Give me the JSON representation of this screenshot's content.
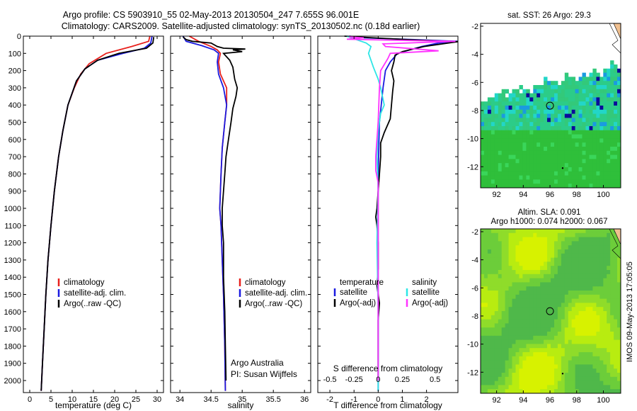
{
  "title_line1": "Argo profile: CS 5903910_55 02-May-2013 20130504_247 7.655S 96.001E",
  "title_line2": "Climatology: CARS2009. Satellite-adjusted climatology: synTS_20130502.nc (0.18d earlier)",
  "side_stamp": "IMOS 09-May-2013 17:05:05",
  "footer_institution": "Argo Australia",
  "footer_pi": "PI: Susan Wijffels",
  "colors": {
    "climatology": "#e8201c",
    "satellite": "#1a1ae0",
    "argo": "#000000",
    "sal_satellite": "#2ee6e6",
    "sal_argo": "#ff33ff"
  },
  "chart_data": [
    {
      "type": "line",
      "id": "temperature",
      "xlabel": "temperature (deg C)",
      "xlim": [
        -1.5,
        31.5
      ],
      "ylim": [
        2070,
        0
      ],
      "xticks": [
        0,
        5,
        10,
        15,
        20,
        25,
        30
      ],
      "xtick_labels": [
        "0",
        "5",
        "10",
        "15",
        "20",
        "25",
        "30"
      ],
      "yticks": [
        0,
        100,
        200,
        300,
        400,
        500,
        600,
        700,
        800,
        900,
        1000,
        1100,
        1200,
        1300,
        1400,
        1500,
        1600,
        1700,
        1800,
        1900,
        2000
      ],
      "ytick_labels": [
        "0",
        "100",
        "200",
        "300",
        "400",
        "500",
        "600",
        "700",
        "800",
        "900",
        "1000",
        "1100",
        "1200",
        "1300",
        "1400",
        "1500",
        "1600",
        "1700",
        "1800",
        "1900",
        "2000"
      ],
      "legend": [
        "climatology",
        "satellite-adj. clim.",
        "Argo(..raw -QC)"
      ],
      "series": [
        {
          "name": "climatology",
          "color_key": "climatology",
          "points": [
            [
              28.3,
              0
            ],
            [
              28,
              30
            ],
            [
              24,
              60
            ],
            [
              18,
              100
            ],
            [
              14,
              160
            ],
            [
              12,
              220
            ],
            [
              10.5,
              300
            ],
            [
              9,
              400
            ],
            [
              7.8,
              550
            ],
            [
              6.8,
              700
            ],
            [
              5.8,
              900
            ],
            [
              5,
              1100
            ],
            [
              4.3,
              1300
            ],
            [
              3.8,
              1500
            ],
            [
              3.4,
              1700
            ],
            [
              3,
              1900
            ],
            [
              2.7,
              2060
            ]
          ]
        },
        {
          "name": "satellite-adj. clim.",
          "color_key": "satellite",
          "points": [
            [
              28.8,
              0
            ],
            [
              28.5,
              40
            ],
            [
              27,
              70
            ],
            [
              22,
              100
            ],
            [
              16,
              140
            ],
            [
              13,
              190
            ],
            [
              11,
              260
            ],
            [
              10,
              330
            ],
            [
              9,
              400
            ],
            [
              7.8,
              550
            ],
            [
              6.8,
              700
            ],
            [
              5.8,
              900
            ],
            [
              5,
              1100
            ],
            [
              4.3,
              1300
            ],
            [
              3.8,
              1500
            ],
            [
              3.4,
              1700
            ],
            [
              3,
              1900
            ],
            [
              2.7,
              2060
            ]
          ]
        },
        {
          "name": "Argo(..raw -QC)",
          "color_key": "argo",
          "points": [
            [
              29.2,
              5
            ],
            [
              29,
              40
            ],
            [
              27.5,
              70
            ],
            [
              21,
              100
            ],
            [
              16,
              140
            ],
            [
              13,
              190
            ],
            [
              11,
              260
            ],
            [
              10,
              330
            ],
            [
              9,
              400
            ],
            [
              7.8,
              550
            ],
            [
              6.8,
              700
            ],
            [
              5.8,
              900
            ],
            [
              5,
              1100
            ],
            [
              4.3,
              1300
            ],
            [
              3.8,
              1500
            ],
            [
              3.4,
              1700
            ],
            [
              3,
              1900
            ],
            [
              2.7,
              2060
            ]
          ]
        }
      ]
    },
    {
      "type": "line",
      "id": "salinity",
      "xlabel": "salinity",
      "xlim": [
        33.85,
        36.1
      ],
      "ylim": [
        2070,
        0
      ],
      "xticks": [
        34,
        34.5,
        35,
        35.5,
        36
      ],
      "xtick_labels": [
        "34",
        "34.5",
        "35",
        "35.5",
        "36"
      ],
      "legend": [
        "climatology",
        "satellite-adj. clim.",
        "Argo(..raw -QC)"
      ],
      "series": [
        {
          "name": "climatology",
          "color_key": "climatology",
          "points": [
            [
              34.15,
              0
            ],
            [
              34.3,
              30
            ],
            [
              34.5,
              60
            ],
            [
              34.6,
              80
            ],
            [
              34.65,
              100
            ],
            [
              34.62,
              150
            ],
            [
              34.65,
              220
            ],
            [
              34.75,
              300
            ],
            [
              34.75,
              400
            ],
            [
              34.72,
              500
            ],
            [
              34.68,
              650
            ],
            [
              34.66,
              800
            ],
            [
              34.64,
              1000
            ],
            [
              34.66,
              1100
            ],
            [
              34.68,
              1300
            ],
            [
              34.7,
              1500
            ],
            [
              34.72,
              1800
            ],
            [
              34.73,
              2060
            ]
          ]
        },
        {
          "name": "satellite-adj. clim.",
          "color_key": "satellite",
          "points": [
            [
              34.05,
              0
            ],
            [
              34.1,
              30
            ],
            [
              34.35,
              55
            ],
            [
              34.55,
              80
            ],
            [
              34.62,
              100
            ],
            [
              34.6,
              150
            ],
            [
              34.62,
              220
            ],
            [
              34.7,
              300
            ],
            [
              34.75,
              400
            ],
            [
              34.72,
              500
            ],
            [
              34.68,
              650
            ],
            [
              34.66,
              800
            ],
            [
              34.64,
              1000
            ],
            [
              34.66,
              1100
            ],
            [
              34.68,
              1300
            ],
            [
              34.7,
              1500
            ],
            [
              34.72,
              1800
            ],
            [
              34.73,
              2060
            ]
          ]
        },
        {
          "name": "Argo(..raw -QC)",
          "color_key": "argo",
          "points": [
            [
              34.05,
              5
            ],
            [
              34.1,
              20
            ],
            [
              34.2,
              30
            ],
            [
              34.5,
              40
            ],
            [
              34.6,
              60
            ],
            [
              34.7,
              70
            ],
            [
              35.05,
              75
            ],
            [
              34.85,
              80
            ],
            [
              35.0,
              90
            ],
            [
              34.7,
              100
            ],
            [
              34.8,
              140
            ],
            [
              34.85,
              180
            ],
            [
              34.88,
              250
            ],
            [
              34.92,
              300
            ],
            [
              34.9,
              350
            ],
            [
              34.85,
              420
            ],
            [
              34.82,
              500
            ],
            [
              34.78,
              600
            ],
            [
              34.74,
              700
            ],
            [
              34.72,
              800
            ],
            [
              34.7,
              900
            ],
            [
              34.68,
              1000
            ],
            [
              34.68,
              1100
            ],
            [
              34.7,
              1200
            ],
            [
              34.7,
              1400
            ],
            [
              34.72,
              1600
            ],
            [
              34.73,
              1800
            ],
            [
              34.74,
              2000
            ]
          ]
        }
      ]
    },
    {
      "type": "line",
      "id": "difference",
      "xlabel": "T difference from climatology",
      "xlabel_top": "S difference from climatology",
      "xlim": [
        -2.5,
        3.3
      ],
      "ylim": [
        2070,
        0
      ],
      "xticks": [
        -2,
        -1,
        0,
        1,
        2
      ],
      "xtick_labels": [
        "-2",
        "-1",
        "0",
        "1",
        "2"
      ],
      "s_tick_labels": [
        "-0.5",
        "-0.25",
        "0",
        "0.25",
        "0.5"
      ],
      "legend_temperature_title": "temperature",
      "legend_salinity_title": "salinity",
      "legend_temperature": [
        "satellite",
        "Argo(-adj)"
      ],
      "legend_salinity": [
        "satellite",
        "Argo(-adj)"
      ],
      "series": [
        {
          "name": "T satellite",
          "color_key": "satellite",
          "points": [
            [
              -1.2,
              0
            ],
            [
              -0.6,
              10
            ],
            [
              1.5,
              20
            ],
            [
              3.3,
              30
            ],
            [
              2.5,
              40
            ],
            [
              1.8,
              60
            ],
            [
              0.8,
              100
            ],
            [
              0.5,
              150
            ],
            [
              0.3,
              200
            ],
            [
              0.2,
              300
            ],
            [
              0.05,
              500
            ],
            [
              0,
              800
            ],
            [
              0,
              1200
            ],
            [
              0,
              1600
            ],
            [
              0,
              2060
            ]
          ]
        },
        {
          "name": "T Argo(-adj)",
          "color_key": "argo",
          "points": [
            [
              -1.4,
              0
            ],
            [
              -0.2,
              10
            ],
            [
              1.2,
              20
            ],
            [
              3.3,
              32
            ],
            [
              1.9,
              60
            ],
            [
              1.3,
              80
            ],
            [
              1.0,
              90
            ],
            [
              0.7,
              110
            ],
            [
              0.65,
              150
            ],
            [
              0.55,
              200
            ],
            [
              0.65,
              260
            ],
            [
              0.6,
              320
            ],
            [
              0.55,
              400
            ],
            [
              0.5,
              480
            ],
            [
              0.25,
              560
            ],
            [
              0.1,
              620
            ],
            [
              0.1,
              700
            ],
            [
              0.05,
              800
            ],
            [
              0,
              900
            ],
            [
              -0.05,
              1000
            ],
            [
              -0.1,
              1050
            ],
            [
              -0.05,
              1100
            ],
            [
              0,
              1200
            ],
            [
              0,
              1350
            ],
            [
              -0.05,
              1450
            ],
            [
              0.05,
              1550
            ],
            [
              0,
              1650
            ],
            [
              0,
              1800
            ],
            [
              0,
              2000
            ]
          ]
        },
        {
          "name": "S satellite",
          "color_key": "sal_satellite",
          "points": [
            [
              -1.3,
              0
            ],
            [
              -0.9,
              20
            ],
            [
              -0.5,
              40
            ],
            [
              -0.3,
              60
            ],
            [
              -0.4,
              100
            ],
            [
              -0.2,
              180
            ],
            [
              0,
              250
            ],
            [
              0.1,
              300
            ],
            [
              0.25,
              400
            ],
            [
              0.1,
              450
            ],
            [
              0,
              550
            ],
            [
              -0.05,
              700
            ],
            [
              0,
              900
            ],
            [
              -0.05,
              1200
            ],
            [
              0,
              1600
            ],
            [
              0,
              2060
            ]
          ]
        },
        {
          "name": "S Argo(-adj)",
          "color_key": "sal_argo",
          "points": [
            [
              -1.2,
              5
            ],
            [
              -0.6,
              10
            ],
            [
              -1.3,
              18
            ],
            [
              1.2,
              25
            ],
            [
              3.2,
              30
            ],
            [
              0.2,
              45
            ],
            [
              0.3,
              60
            ],
            [
              2.5,
              85
            ],
            [
              0.5,
              100
            ],
            [
              0.4,
              130
            ],
            [
              0.1,
              200
            ],
            [
              0.05,
              300
            ],
            [
              0,
              500
            ],
            [
              -0.1,
              700
            ],
            [
              -0.1,
              780
            ],
            [
              0,
              850
            ],
            [
              0,
              1000
            ],
            [
              0,
              1300
            ],
            [
              0,
              1600
            ],
            [
              0,
              1900
            ],
            [
              0,
              2000
            ]
          ]
        }
      ]
    },
    {
      "type": "heatmap",
      "id": "sst_map",
      "title": "sat. SST: 26 Argo: 29.3",
      "xlim": [
        90.8,
        101.3
      ],
      "ylim": [
        -13.5,
        -1.8
      ],
      "xticks": [
        92,
        94,
        96,
        98,
        100
      ],
      "xtick_labels": [
        "92",
        "94",
        "96",
        "98",
        "100"
      ],
      "yticks": [
        -2,
        -4,
        -6,
        -8,
        -10,
        -12
      ],
      "ytick_labels": [
        "-2",
        "-4",
        "-6",
        "-8",
        "-10",
        "-12"
      ],
      "argo_position": [
        96.0,
        -7.655
      ],
      "cloud_top_lat": -4.8
    },
    {
      "type": "heatmap",
      "id": "sla_map",
      "title": "Altim. SLA: 0.091",
      "subtitle": "Argo h1000: 0.074 h2000: 0.067",
      "xlim": [
        90.8,
        101.3
      ],
      "ylim": [
        -13.5,
        -1.8
      ],
      "xticks": [
        92,
        94,
        96,
        98,
        100
      ],
      "xtick_labels": [
        "92",
        "94",
        "96",
        "98",
        "100"
      ],
      "yticks": [
        -2,
        -4,
        -6,
        -8,
        -10,
        -12
      ],
      "ytick_labels": [
        "-2",
        "-4",
        "-6",
        "-8",
        "-10",
        "-12"
      ],
      "argo_position": [
        96.0,
        -7.655
      ]
    }
  ]
}
